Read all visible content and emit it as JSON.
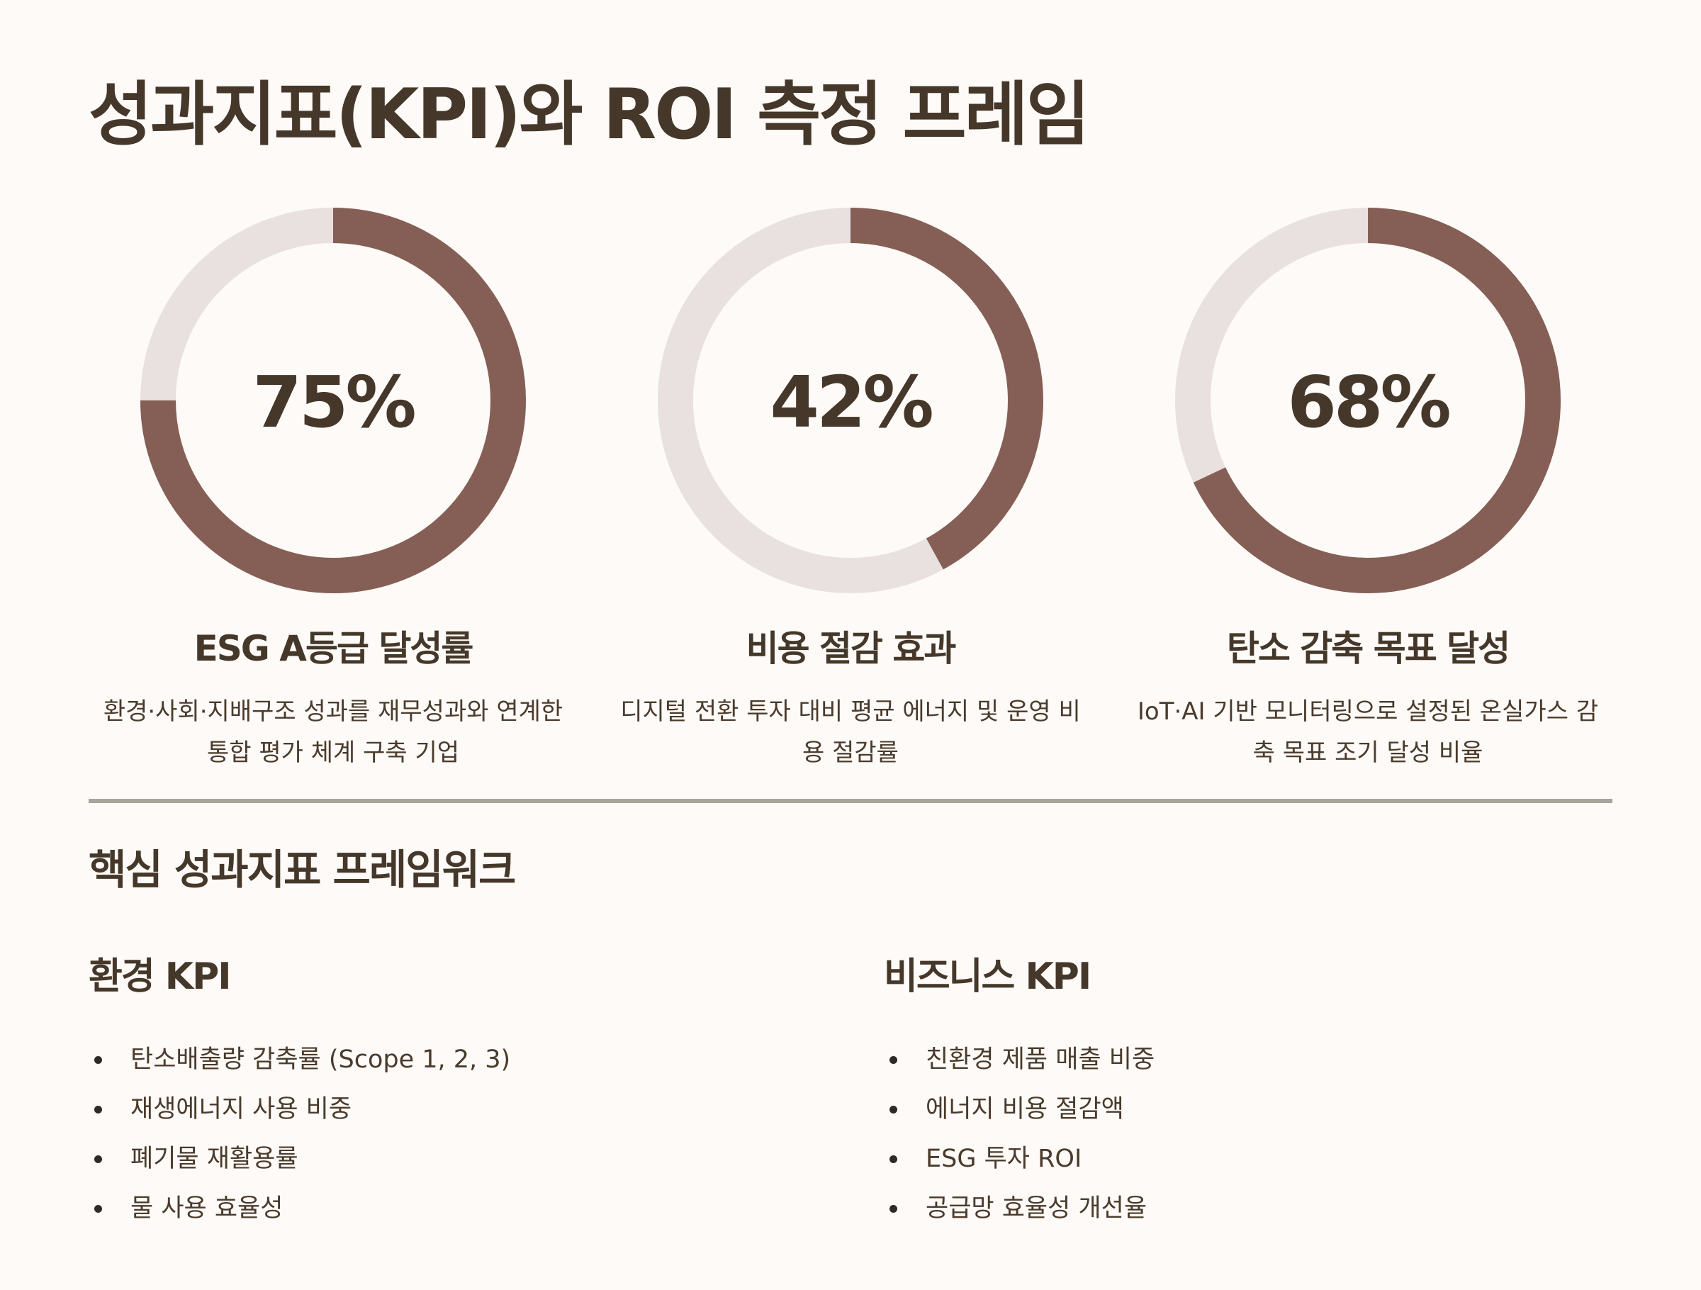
{
  "title": "성과지표(KPI)와 ROI 측정 프레임",
  "colors": {
    "ring_fill": "#855f55",
    "ring_track": "#e9e1df",
    "text": "#45382a",
    "background": "#fdfaf7"
  },
  "kpis": [
    {
      "value_label": "75%",
      "value": 0.75,
      "title": "ESG A등급 달성률",
      "desc_line1": "환경·사회·지배구조 성과를 재무성과와 연계한",
      "desc_line2": "통합 평가 체계 구축 기업"
    },
    {
      "value_label": "42%",
      "value": 0.42,
      "title": "비용 절감 효과",
      "desc_line1": "디지털 전환 투자 대비 평균 에너지 및 운영 비",
      "desc_line2": "용 절감률"
    },
    {
      "value_label": "68%",
      "value": 0.68,
      "title": "탄소 감축 목표 달성",
      "desc_line1": "IoT·AI 기반 모니터링으로 설정된 온실가스 감",
      "desc_line2": "축 목표 조기 달성 비율"
    }
  ],
  "section_title": "핵심 성과지표 프레임워크",
  "env": {
    "heading": "환경 KPI",
    "items": [
      "탄소배출량 감축률 (Scope 1, 2, 3)",
      "재생에너지 사용 비중",
      "폐기물 재활용률",
      "물 사용 효율성"
    ]
  },
  "biz": {
    "heading": "비즈니스 KPI",
    "items": [
      "친환경 제품 매출 비중",
      "에너지 비용 절감액",
      "ESG 투자 ROI",
      "공급망 효율성 개선율"
    ]
  }
}
